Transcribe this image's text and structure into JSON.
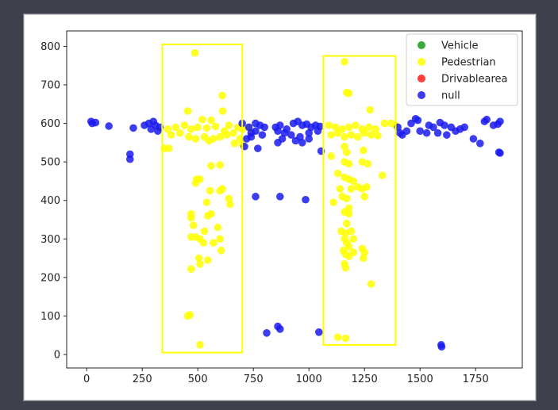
{
  "chart_data": {
    "type": "scatter",
    "xlim": [
      -90,
      1960
    ],
    "ylim": [
      -35,
      840
    ],
    "xticks": [
      0,
      250,
      500,
      750,
      1000,
      1250,
      1500,
      1750
    ],
    "yticks": [
      0,
      100,
      200,
      300,
      400,
      500,
      600,
      700,
      800
    ],
    "grid": false,
    "legend": {
      "placement": "top-right",
      "entries": [
        {
          "label": "Vehicle",
          "color": "#1a9a1a"
        },
        {
          "label": "Pedestrian",
          "color": "#ffff00"
        },
        {
          "label": "Drivablearea",
          "color": "#ff1a1a"
        },
        {
          "label": "null",
          "color": "#1a1aee"
        }
      ]
    },
    "series": [
      {
        "name": "Vehicle",
        "color": "#1a9a1a",
        "points": []
      },
      {
        "name": "Pedestrian",
        "color": "#ffff00",
        "points": [
          [
            487,
            783
          ],
          [
            455,
            632
          ],
          [
            610,
            672
          ],
          [
            612,
            632
          ],
          [
            520,
            610
          ],
          [
            560,
            608
          ],
          [
            640,
            595
          ],
          [
            680,
            590
          ],
          [
            700,
            585
          ],
          [
            730,
            590
          ],
          [
            365,
            585
          ],
          [
            400,
            590
          ],
          [
            440,
            595
          ],
          [
            470,
            585
          ],
          [
            500,
            590
          ],
          [
            540,
            588
          ],
          [
            580,
            592
          ],
          [
            620,
            580
          ],
          [
            660,
            575
          ],
          [
            690,
            560
          ],
          [
            380,
            570
          ],
          [
            420,
            575
          ],
          [
            460,
            565
          ],
          [
            490,
            560
          ],
          [
            530,
            565
          ],
          [
            550,
            555
          ],
          [
            570,
            560
          ],
          [
            600,
            565
          ],
          [
            630,
            570
          ],
          [
            665,
            548
          ],
          [
            700,
            545
          ],
          [
            350,
            535
          ],
          [
            370,
            535
          ],
          [
            560,
            490
          ],
          [
            600,
            492
          ],
          [
            495,
            455
          ],
          [
            510,
            455
          ],
          [
            490,
            445
          ],
          [
            555,
            425
          ],
          [
            600,
            425
          ],
          [
            610,
            430
          ],
          [
            540,
            395
          ],
          [
            640,
            405
          ],
          [
            645,
            390
          ],
          [
            470,
            365
          ],
          [
            470,
            355
          ],
          [
            560,
            365
          ],
          [
            545,
            360
          ],
          [
            480,
            335
          ],
          [
            590,
            330
          ],
          [
            470,
            305
          ],
          [
            490,
            305
          ],
          [
            530,
            320
          ],
          [
            510,
            300
          ],
          [
            525,
            290
          ],
          [
            570,
            290
          ],
          [
            600,
            300
          ],
          [
            505,
            250
          ],
          [
            545,
            245
          ],
          [
            510,
            235
          ],
          [
            605,
            270
          ],
          [
            470,
            222
          ],
          [
            455,
            100
          ],
          [
            465,
            103
          ],
          [
            510,
            25
          ],
          [
            1160,
            760
          ],
          [
            1170,
            680
          ],
          [
            1180,
            678
          ],
          [
            1275,
            635
          ],
          [
            1090,
            595
          ],
          [
            1120,
            590
          ],
          [
            1150,
            585
          ],
          [
            1180,
            590
          ],
          [
            1210,
            595
          ],
          [
            1240,
            585
          ],
          [
            1270,
            590
          ],
          [
            1300,
            585
          ],
          [
            1340,
            600
          ],
          [
            1370,
            600
          ],
          [
            1390,
            595
          ],
          [
            1100,
            570
          ],
          [
            1130,
            575
          ],
          [
            1160,
            565
          ],
          [
            1190,
            570
          ],
          [
            1220,
            565
          ],
          [
            1250,
            575
          ],
          [
            1280,
            570
          ],
          [
            1310,
            568
          ],
          [
            1160,
            540
          ],
          [
            1170,
            525
          ],
          [
            1245,
            530
          ],
          [
            1160,
            500
          ],
          [
            1180,
            495
          ],
          [
            1240,
            500
          ],
          [
            1265,
            495
          ],
          [
            1100,
            515
          ],
          [
            1130,
            470
          ],
          [
            1160,
            460
          ],
          [
            1180,
            455
          ],
          [
            1200,
            450
          ],
          [
            1330,
            465
          ],
          [
            1190,
            430
          ],
          [
            1220,
            435
          ],
          [
            1240,
            430
          ],
          [
            1260,
            435
          ],
          [
            1140,
            430
          ],
          [
            1150,
            410
          ],
          [
            1170,
            405
          ],
          [
            1250,
            410
          ],
          [
            1110,
            395
          ],
          [
            1180,
            380
          ],
          [
            1160,
            370
          ],
          [
            1180,
            365
          ],
          [
            1170,
            340
          ],
          [
            1145,
            320
          ],
          [
            1165,
            315
          ],
          [
            1190,
            320
          ],
          [
            1200,
            300
          ],
          [
            1160,
            300
          ],
          [
            1170,
            290
          ],
          [
            1180,
            280
          ],
          [
            1155,
            270
          ],
          [
            1165,
            260
          ],
          [
            1180,
            255
          ],
          [
            1200,
            265
          ],
          [
            1240,
            275
          ],
          [
            1250,
            265
          ],
          [
            1245,
            250
          ],
          [
            1160,
            235
          ],
          [
            1165,
            225
          ],
          [
            1280,
            183
          ],
          [
            1130,
            45
          ],
          [
            1165,
            42
          ]
        ]
      },
      {
        "name": "Drivablearea",
        "color": "#ff1a1a",
        "points": []
      },
      {
        "name": "null",
        "color": "#1a1aee",
        "points": [
          [
            20,
            605
          ],
          [
            25,
            600
          ],
          [
            40,
            602
          ],
          [
            100,
            593
          ],
          [
            210,
            588
          ],
          [
            195,
            520
          ],
          [
            195,
            507
          ],
          [
            260,
            595
          ],
          [
            280,
            600
          ],
          [
            300,
            605
          ],
          [
            310,
            595
          ],
          [
            320,
            580
          ],
          [
            330,
            590
          ],
          [
            290,
            585
          ],
          [
            700,
            600
          ],
          [
            730,
            590
          ],
          [
            740,
            575
          ],
          [
            760,
            580
          ],
          [
            780,
            595
          ],
          [
            800,
            590
          ],
          [
            760,
            600
          ],
          [
            720,
            560
          ],
          [
            740,
            565
          ],
          [
            790,
            570
          ],
          [
            710,
            540
          ],
          [
            770,
            535
          ],
          [
            850,
            590
          ],
          [
            870,
            595
          ],
          [
            900,
            585
          ],
          [
            930,
            600
          ],
          [
            950,
            605
          ],
          [
            970,
            595
          ],
          [
            990,
            598
          ],
          [
            1010,
            590
          ],
          [
            1030,
            595
          ],
          [
            1050,
            592
          ],
          [
            860,
            580
          ],
          [
            890,
            575
          ],
          [
            920,
            570
          ],
          [
            960,
            565
          ],
          [
            1000,
            575
          ],
          [
            1040,
            580
          ],
          [
            860,
            550
          ],
          [
            880,
            560
          ],
          [
            940,
            555
          ],
          [
            970,
            550
          ],
          [
            1000,
            560
          ],
          [
            1055,
            528
          ],
          [
            1400,
            590
          ],
          [
            1410,
            575
          ],
          [
            1420,
            570
          ],
          [
            1440,
            580
          ],
          [
            1460,
            600
          ],
          [
            1480,
            612
          ],
          [
            1490,
            608
          ],
          [
            1500,
            580
          ],
          [
            1530,
            575
          ],
          [
            1540,
            595
          ],
          [
            1560,
            590
          ],
          [
            1590,
            602
          ],
          [
            1610,
            595
          ],
          [
            1640,
            590
          ],
          [
            1660,
            580
          ],
          [
            1680,
            585
          ],
          [
            1700,
            590
          ],
          [
            1580,
            575
          ],
          [
            1620,
            570
          ],
          [
            1740,
            560
          ],
          [
            1770,
            548
          ],
          [
            1790,
            605
          ],
          [
            1800,
            610
          ],
          [
            1830,
            595
          ],
          [
            1850,
            598
          ],
          [
            1860,
            605
          ],
          [
            1855,
            525
          ],
          [
            1860,
            523
          ],
          [
            760,
            410
          ],
          [
            870,
            410
          ],
          [
            985,
            402
          ],
          [
            860,
            73
          ],
          [
            870,
            66
          ],
          [
            810,
            56
          ],
          [
            1045,
            58
          ],
          [
            1595,
            25
          ],
          [
            1597,
            20
          ]
        ]
      }
    ],
    "annotations": [
      {
        "type": "rectangle",
        "color": "#ffff00",
        "x_range": [
          340,
          700
        ],
        "y_range": [
          5,
          805
        ]
      },
      {
        "type": "rectangle",
        "color": "#ffff00",
        "x_range": [
          1065,
          1390
        ],
        "y_range": [
          25,
          775
        ]
      }
    ]
  }
}
